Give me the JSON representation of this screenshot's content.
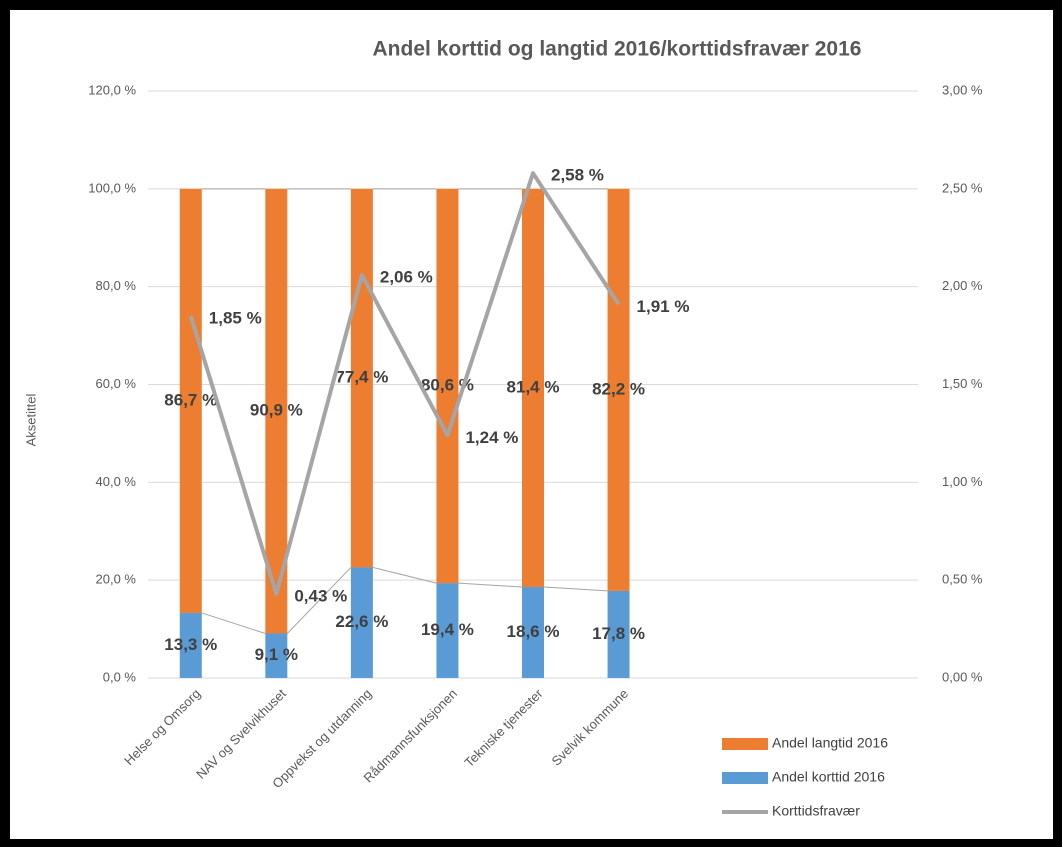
{
  "chart_data": {
    "type": "bar",
    "title": "Andel korttid og langtid 2016/korttidsfravær 2016",
    "y_label": "Aksetittel",
    "stacked": true,
    "categories": [
      "Helse og Omsorg",
      "NAV og Svelvikhuset",
      "Oppvekst og utdanning",
      "Rådmannsfunksjonen",
      "Tekniske tjenester",
      "Svelvik kommune",
      null,
      null,
      null
    ],
    "series": [
      {
        "name": "Andel langtid 2016",
        "type": "bar",
        "color": "#ed7d31",
        "values": [
          86.7,
          90.9,
          77.4,
          80.6,
          81.4,
          82.2,
          null,
          null,
          null
        ],
        "value_labels": [
          "86,7 %",
          "90,9 %",
          "77,4 %",
          "80,6 %",
          "81,4 %",
          "82,2 %",
          null,
          null,
          null
        ]
      },
      {
        "name": "Andel korttid 2016",
        "type": "bar",
        "color": "#5b9bd5",
        "values": [
          13.3,
          9.1,
          22.6,
          19.4,
          18.6,
          17.8,
          null,
          null,
          null
        ],
        "value_labels": [
          "13,3 %",
          "9,1 %",
          "22,6 %",
          "19,4 %",
          "18,6 %",
          "17,8 %",
          null,
          null,
          null
        ]
      },
      {
        "name": "Korttidsfravær",
        "type": "line",
        "axis": "y2",
        "color": "#a5a5a5",
        "values": [
          1.85,
          0.43,
          2.06,
          1.24,
          2.58,
          1.91,
          null,
          null,
          null
        ],
        "value_labels": [
          "1,85 %",
          "0,43 %",
          "2,06 %",
          "1,24 %",
          "2,58 %",
          "1,91 %",
          null,
          null,
          null
        ]
      }
    ],
    "ylim": [
      0,
      120
    ],
    "yticks": [
      {
        "value": 0,
        "label": "0,0 %"
      },
      {
        "value": 20,
        "label": "20,0 %"
      },
      {
        "value": 40,
        "label": "40,0 %"
      },
      {
        "value": 60,
        "label": "60,0 %"
      },
      {
        "value": 80,
        "label": "80,0 %"
      },
      {
        "value": 100,
        "label": "100,0 %"
      },
      {
        "value": 120,
        "label": "120,0 %"
      }
    ],
    "y2lim": [
      0,
      3
    ],
    "y2ticks": [
      {
        "value": 0,
        "label": "0,00 %"
      },
      {
        "value": 0.5,
        "label": "0,50 %"
      },
      {
        "value": 1,
        "label": "1,00 %"
      },
      {
        "value": 1.5,
        "label": "1,50 %"
      },
      {
        "value": 2,
        "label": "2,00 %"
      },
      {
        "value": 2.5,
        "label": "2,50 %"
      },
      {
        "value": 3,
        "label": "3,00 %"
      }
    ],
    "grid": true,
    "legend": "lower right"
  }
}
